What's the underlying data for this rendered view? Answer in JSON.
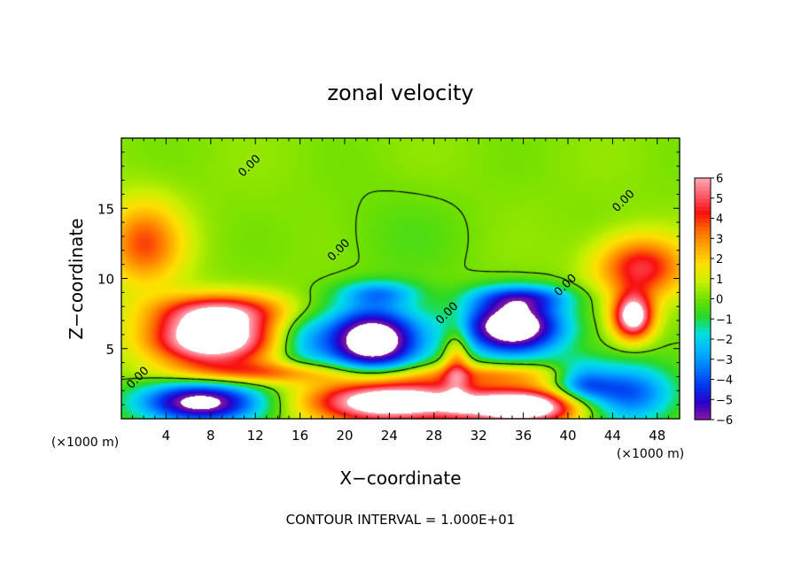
{
  "chart_data": {
    "type": "heatmap",
    "title": "zonal velocity",
    "xlabel": "X−coordinate",
    "ylabel": "Z−coordinate",
    "x_unit_left": "(×1000 m)",
    "x_unit_right": "(×1000 m)",
    "footer": "CONTOUR INTERVAL = 1.000E+01",
    "xlim": [
      0,
      50
    ],
    "ylim": [
      0,
      20
    ],
    "x_ticks": [
      4,
      8,
      12,
      16,
      20,
      24,
      28,
      32,
      36,
      40,
      44,
      48
    ],
    "y_ticks": [
      5,
      10,
      15
    ],
    "colorbar": {
      "vmin": -6,
      "vmax": 6,
      "ticks": [
        6,
        5,
        4,
        3,
        2,
        1,
        0,
        -1,
        -2,
        -3,
        -4,
        -5,
        -6
      ],
      "colors": [
        "#8a1aa0",
        "#2a00c8",
        "#0038f0",
        "#0078ff",
        "#00b4ff",
        "#00e0e0",
        "#28d828",
        "#70e000",
        "#c8f000",
        "#ffe000",
        "#ffaa00",
        "#ff6a00",
        "#f81010",
        "#ff5a6a",
        "#ffa8b0"
      ]
    },
    "contour_label": "0.00",
    "contour_label_positions": [
      {
        "x": 11.5,
        "y": 18
      },
      {
        "x": 19.5,
        "y": 12
      },
      {
        "x": 29.2,
        "y": 7.5
      },
      {
        "x": 39.8,
        "y": 9.5
      },
      {
        "x": 45.0,
        "y": 15.5
      },
      {
        "x": 1.5,
        "y": 2.9
      }
    ],
    "features": [
      {
        "x": 8,
        "y": 5.8,
        "rx": 5.5,
        "ry": 2.0,
        "v": 8
      },
      {
        "x": 22.5,
        "y": 5.6,
        "rx": 4.5,
        "ry": 2.4,
        "v": -8
      },
      {
        "x": 35,
        "y": 6.6,
        "rx": 4.6,
        "ry": 2.0,
        "v": -8
      },
      {
        "x": 45.8,
        "y": 7.3,
        "rx": 1.8,
        "ry": 1.6,
        "v": 7
      },
      {
        "x": 24,
        "y": 1.3,
        "rx": 7.0,
        "ry": 1.6,
        "v": 8
      },
      {
        "x": 36,
        "y": 0.9,
        "rx": 6.0,
        "ry": 1.3,
        "v": 8
      },
      {
        "x": 7,
        "y": 1.2,
        "rx": 5.5,
        "ry": 1.5,
        "v": -7
      },
      {
        "x": 45,
        "y": 1.8,
        "rx": 4.5,
        "ry": 2.2,
        "v": -4.5
      },
      {
        "x": 2,
        "y": 12.5,
        "rx": 3.5,
        "ry": 3.0,
        "v": 3.5
      },
      {
        "x": 46.5,
        "y": 10.8,
        "rx": 4.0,
        "ry": 2.2,
        "v": 4.5
      },
      {
        "x": 9,
        "y": 7.8,
        "rx": 6.0,
        "ry": 1.2,
        "v": 3.5
      },
      {
        "x": 23,
        "y": 9.0,
        "rx": 3.5,
        "ry": 0.9,
        "v": -2.5
      },
      {
        "x": 36,
        "y": 8.7,
        "rx": 4.5,
        "ry": 0.9,
        "v": -3
      },
      {
        "x": 13,
        "y": 3.3,
        "rx": 8.0,
        "ry": 0.8,
        "v": 3
      },
      {
        "x": 33,
        "y": 3.2,
        "rx": 8.0,
        "ry": 0.8,
        "v": 2.5
      },
      {
        "x": 41,
        "y": 2.5,
        "rx": 2.5,
        "ry": 1.6,
        "v": -3
      },
      {
        "x": 30,
        "y": 4.2,
        "rx": 1.2,
        "ry": 2.6,
        "v": 3
      },
      {
        "x": 16,
        "y": 5.5,
        "rx": 2.5,
        "ry": 2.0,
        "v": -2
      },
      {
        "x": 25,
        "y": 13.0,
        "rx": 6.0,
        "ry": 3.5,
        "v": -0.5
      }
    ]
  }
}
